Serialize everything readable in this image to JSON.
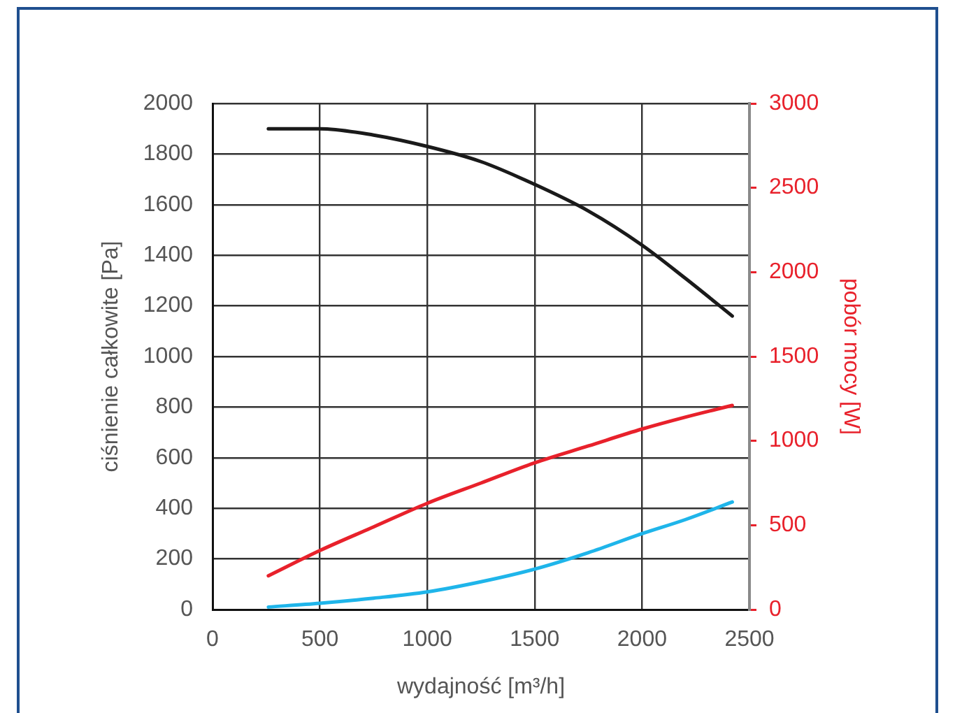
{
  "chart_data": {
    "type": "line",
    "xlabel": "wydajność [m³/h]",
    "ylabel": "ciśnienie całkowite [Pa]",
    "y2label": "pobór mocy [W]",
    "x": [
      260,
      500,
      750,
      1000,
      1250,
      1500,
      1750,
      2000,
      2200,
      2420
    ],
    "series": [
      {
        "color": "#1a1a1a",
        "values": [
          1900,
          1900,
          1875,
          1830,
          1770,
          1680,
          1575,
          1440,
          1310,
          1160
        ]
      },
      {
        "color": "#e8212b",
        "axis": "y2",
        "values": [
          200,
          350,
          490,
          630,
          750,
          870,
          970,
          1070,
          1140,
          1210
        ]
      },
      {
        "color": "#1fb5ea",
        "values": [
          10,
          25,
          45,
          70,
          110,
          160,
          225,
          300,
          355,
          425
        ]
      }
    ],
    "xlim": [
      0,
      2500
    ],
    "xticks": [
      0,
      500,
      1000,
      1500,
      2000,
      2500
    ],
    "ylim": [
      0,
      2000
    ],
    "yticks": [
      0,
      200,
      400,
      600,
      800,
      1000,
      1200,
      1400,
      1600,
      1800,
      2000
    ],
    "y2lim": [
      0,
      3000
    ],
    "y2ticks": [
      0,
      500,
      1000,
      1500,
      2000,
      2500,
      3000
    ],
    "grid": true
  }
}
